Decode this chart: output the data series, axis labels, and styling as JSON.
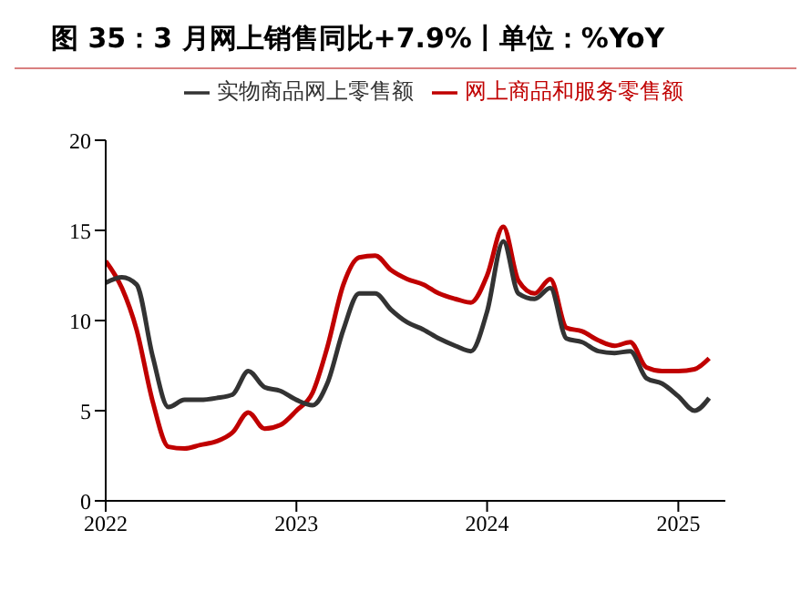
{
  "chart_data": {
    "type": "line",
    "title": "图 35：3 月网上销售同比+7.9%丨单位：%YoY",
    "x": [
      "2022-01",
      "2022-02",
      "2022-03",
      "2022-04",
      "2022-05",
      "2022-06",
      "2022-07",
      "2022-08",
      "2022-09",
      "2022-10",
      "2022-11",
      "2022-12",
      "2023-01",
      "2023-02",
      "2023-03",
      "2023-04",
      "2023-05",
      "2023-06",
      "2023-07",
      "2023-08",
      "2023-09",
      "2023-10",
      "2023-11",
      "2023-12",
      "2024-01",
      "2024-02",
      "2024-03",
      "2024-04",
      "2024-05",
      "2024-06",
      "2024-07",
      "2024-08",
      "2024-09",
      "2024-10",
      "2024-11",
      "2024-12",
      "2025-01",
      "2025-02",
      "2025-03"
    ],
    "series": [
      {
        "name": "网上商品和服务零售额",
        "color": "#c00000",
        "values": [
          13.3,
          11.8,
          9.5,
          5.5,
          3.0,
          2.9,
          3.1,
          3.3,
          3.8,
          4.9,
          4.0,
          4.2,
          5.0,
          6.0,
          8.5,
          12.0,
          13.5,
          13.6,
          12.8,
          12.3,
          12.0,
          11.5,
          11.2,
          11.0,
          12.5,
          15.2,
          12.2,
          11.5,
          12.3,
          9.6,
          9.4,
          8.9,
          8.6,
          8.8,
          7.4,
          7.2,
          7.2,
          7.3,
          7.9
        ]
      },
      {
        "name": "实物商品网上零售额",
        "color": "#333333",
        "values": [
          12.1,
          12.4,
          12.0,
          8.0,
          5.2,
          5.6,
          5.6,
          5.7,
          5.9,
          7.2,
          6.3,
          6.1,
          5.6,
          5.3,
          6.5,
          9.5,
          11.5,
          11.5,
          10.6,
          9.9,
          9.5,
          9.0,
          8.6,
          8.3,
          10.5,
          14.4,
          11.5,
          11.2,
          11.8,
          9.0,
          8.8,
          8.3,
          8.2,
          8.3,
          6.8,
          6.5,
          5.8,
          5.0,
          5.7
        ]
      }
    ],
    "xlim": [
      "2022-01",
      "2025-04"
    ],
    "xticks": [
      {
        "value": "2022-01",
        "label": "2022"
      },
      {
        "value": "2023-01",
        "label": "2023"
      },
      {
        "value": "2024-01",
        "label": "2024"
      },
      {
        "value": "2025-01",
        "label": "2025"
      }
    ],
    "ylim": [
      0,
      20
    ],
    "yticks": [
      0,
      5,
      10,
      15,
      20
    ],
    "grid": false,
    "legend": "top",
    "marker": "none",
    "line_style": "solid"
  }
}
